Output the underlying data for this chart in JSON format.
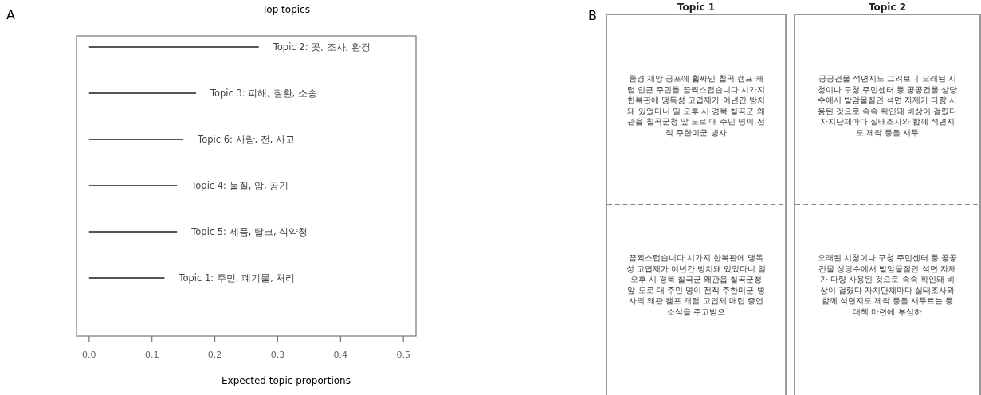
{
  "chart_data": [
    {
      "type": "bar",
      "orientation": "horizontal",
      "title": "Top topics",
      "xlabel": "Expected topic proportions",
      "annotations": [
        "A"
      ],
      "categories": [
        "Topic 2: 곳, 조사, 환경",
        "Topic 3: 피해, 질환, 소송",
        "Topic 6: 사람, 전, 사고",
        "Topic 4: 물질, 암, 공기",
        "Topic 5: 제품, 탈크, 식약청",
        "Topic 1: 주민, 폐기물, 처리"
      ],
      "values": [
        0.27,
        0.17,
        0.15,
        0.14,
        0.14,
        0.12
      ],
      "color": "#555555",
      "xlim": [
        -0.02,
        0.52
      ],
      "xticks": [
        {
          "value": 0,
          "label": "0.0"
        },
        {
          "value": 0.1,
          "label": "0.1"
        },
        {
          "value": 0.2,
          "label": "0.2"
        },
        {
          "value": 0.3,
          "label": "0.3"
        },
        {
          "value": 0.4,
          "label": "0.4"
        },
        {
          "value": 0.5,
          "label": "0.5"
        }
      ]
    },
    {
      "type": "other",
      "categories": [
        "Topic 1",
        "Topic 2"
      ],
      "annotations": [
        "B",
        "환경 재앙 공포에 휩싸인 칠곡 캠프 캐럴 인근 주민들 끔찍스럽습니다 시가지 한복판에 맹독성 고엽제가 여년간 방치돼 있었다니 일 오후 시 경북 칠곡군 왜관읍 칠곡군청 앞 도로 대 주민 명이 전직 주한미군 병사",
        "끔찍스럽습니다 시가지 한복판에 맹독성 고엽제가 여년간 방치돼 있었다니 일 오후 시 경북 칠곡군 왜관읍 칠곡군청 앞 도로 대 주민 명이 전직 주한미군 병사의 왜관 캠프 캐럴 고엽제 매립 증언 소식을 주고받으",
        "공공건물 석면지도 그려보니 오래된 시청이나 구청 주민센터 등 공공건물 상당수에서 발암물질인 석면 자재가 다량 사용된 것으로 속속 확인돼 비상이 걸렸다 자치단체마다 실태조사와 함께 석면지도 제작 등을 서두",
        "오래된 시청이나 구청 주민센터 등 공공건물 상당수에서 발암물질인 석면 자재가 다량 사용된 것으로 속속 확인돼 비상이 걸렸다 자치단체마다 실태조사와 함께 석면지도 제작 등을 서두르는 등 대책 마련에 부심하"
      ]
    }
  ]
}
